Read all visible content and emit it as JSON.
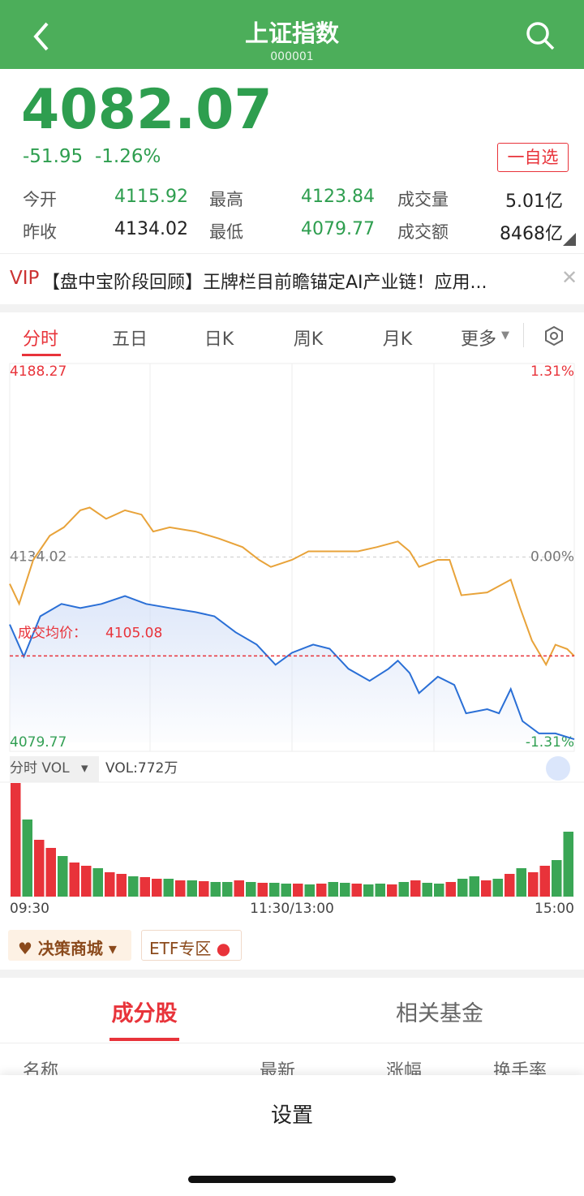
{
  "header": {
    "title": "上证指数",
    "code": "000001"
  },
  "quote": {
    "price": 4082.07,
    "change": -51.95,
    "change_pct": "-1.26%",
    "watch_button": "一自选"
  },
  "stats": [
    {
      "label": "今开",
      "value": "4115.92"
    },
    {
      "label": "最高",
      "value": "4123.84"
    },
    {
      "label": "成交量",
      "value": "5.01亿"
    },
    {
      "label": "昨收",
      "value": "4134.02"
    },
    {
      "label": "最低",
      "value": "4079.77"
    },
    {
      "label": "成交额",
      "value": "8468亿"
    }
  ],
  "news": {
    "badge": "VIP",
    "text": "【盘中宝阶段回顾】王牌栏目前瞻锚定AI产业链！应用..."
  },
  "tabs": [
    "分时",
    "五日",
    "日K",
    "周K",
    "月K",
    "更多"
  ],
  "chart_data": {
    "type": "line",
    "xlim": [
      0,
      240
    ],
    "xticks": [
      {
        "value": 0,
        "label": "09:30"
      },
      {
        "value": 120,
        "label": "11:30/13:00"
      },
      {
        "value": 240,
        "label": "15:00"
      }
    ],
    "ylim": [
      4079.77,
      4188.27
    ],
    "yticks": [
      4079.77,
      4134.02,
      4188.27
    ],
    "y2lim": [
      -1.31,
      1.31
    ],
    "y2ticks": [
      {
        "value": -1.31,
        "label": "-1.31%"
      },
      {
        "value": 0,
        "label": "0.00%"
      },
      {
        "value": 1.31,
        "label": "1.31%"
      }
    ],
    "series": [
      {
        "color": "#2a6fd6",
        "x": [
          0,
          6,
          13,
          22,
          30,
          39,
          49,
          58,
          68,
          79,
          87,
          96,
          105,
          113,
          120,
          129,
          136,
          144,
          153,
          161,
          165,
          170,
          174,
          182,
          189,
          194,
          203,
          208,
          213,
          218,
          225,
          232,
          240
        ],
        "values": [
          4114.3,
          4104.9,
          4116.7,
          4120.3,
          4119.1,
          4120.3,
          4122.6,
          4120.3,
          4119.1,
          4117.9,
          4116.7,
          4112.0,
          4108.4,
          4102.5,
          4106.0,
          4108.4,
          4107.2,
          4101.3,
          4097.8,
          4101.3,
          4103.7,
          4100.1,
          4094.2,
          4099.0,
          4096.6,
          4088.3,
          4089.5,
          4088.3,
          4095.4,
          4086.0,
          4082.4,
          4082.4,
          4080.7
        ]
      },
      {
        "color": "#e8a33a",
        "axis": "y2",
        "x": [
          0,
          4,
          10,
          17,
          23,
          30,
          34,
          41,
          49,
          56,
          61,
          68,
          79,
          89,
          99,
          106,
          111,
          120,
          127,
          137,
          148,
          156,
          165,
          170,
          174,
          182,
          187,
          192,
          203,
          213,
          217,
          222,
          228,
          232,
          237,
          240
        ],
        "values": [
          -0.19,
          -0.33,
          -0.02,
          0.15,
          0.21,
          0.33,
          0.35,
          0.27,
          0.33,
          0.3,
          0.18,
          0.21,
          0.18,
          0.13,
          0.07,
          -0.02,
          -0.07,
          -0.02,
          0.04,
          0.04,
          0.04,
          0.07,
          0.11,
          0.04,
          -0.07,
          -0.02,
          -0.02,
          -0.27,
          -0.25,
          -0.16,
          -0.36,
          -0.59,
          -0.76,
          -0.62,
          -0.65,
          -0.7
        ]
      }
    ],
    "avg_label": "成交均价：",
    "avg": 4105.08,
    "volume": {
      "label": "分时 VOL",
      "value_text": "VOL:772万",
      "ylim": [
        0,
        140
      ],
      "values": [
        140,
        95,
        70,
        60,
        50,
        42,
        38,
        35,
        30,
        28,
        25,
        24,
        22,
        22,
        20,
        20,
        19,
        18,
        18,
        20,
        18,
        17,
        17,
        16,
        16,
        15,
        16,
        18,
        17,
        16,
        15,
        16,
        15,
        18,
        20,
        17,
        16,
        18,
        22,
        25,
        20,
        22,
        28,
        35,
        30,
        38,
        45,
        80
      ],
      "colors": [
        "#e8333a",
        "#3aa655",
        "#e8333a",
        "#e8333a",
        "#3aa655",
        "#e8333a",
        "#e8333a",
        "#3aa655",
        "#e8333a",
        "#e8333a",
        "#3aa655",
        "#e8333a",
        "#e8333a",
        "#3aa655",
        "#e8333a",
        "#3aa655",
        "#e8333a",
        "#3aa655",
        "#3aa655",
        "#e8333a",
        "#3aa655",
        "#e8333a",
        "#3aa655",
        "#3aa655",
        "#e8333a",
        "#3aa655",
        "#e8333a",
        "#3aa655",
        "#3aa655",
        "#e8333a",
        "#3aa655",
        "#3aa655",
        "#e8333a",
        "#3aa655",
        "#e8333a",
        "#3aa655",
        "#3aa655",
        "#e8333a",
        "#3aa655",
        "#3aa655",
        "#e8333a",
        "#3aa655",
        "#e8333a",
        "#3aa655",
        "#e8333a",
        "#e8333a",
        "#3aa655",
        "#3aa655"
      ]
    }
  },
  "shortcuts": [
    "决策商城",
    "ETF专区"
  ],
  "list": {
    "tabs": [
      "成分股",
      "相关基金"
    ],
    "columns": [
      "名称",
      "最新",
      "涨幅",
      "换手率"
    ]
  },
  "sheet": {
    "title": "设置"
  }
}
